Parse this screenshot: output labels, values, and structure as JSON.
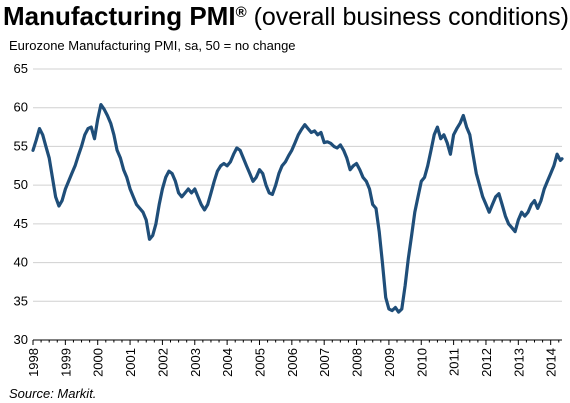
{
  "title_main": "Manufacturing PMI",
  "title_reg": "®",
  "title_rest": " (overall business conditions)",
  "subtitle": "Eurozone Manufacturing PMI, sa, 50 = no change",
  "source": "Source: Markit.",
  "colors": {
    "line": "#1f4e79",
    "grid": "#d0d0d0",
    "axis": "#000000"
  },
  "chart_data": {
    "type": "line",
    "title": "Manufacturing PMI® (overall business conditions)",
    "subtitle": "Eurozone Manufacturing PMI, sa, 50 = no change",
    "ylim": [
      30,
      65
    ],
    "yticks": [
      30,
      35,
      40,
      45,
      50,
      55,
      60,
      65
    ],
    "xlim": [
      1998.0,
      2014.35
    ],
    "xticks": [
      "1998",
      "1999",
      "2000",
      "2001",
      "2002",
      "2003",
      "2004",
      "2005",
      "2006",
      "2007",
      "2008",
      "2009",
      "2010",
      "2011",
      "2012",
      "2013",
      "2014"
    ],
    "grid": true,
    "series": [
      {
        "values": [
          [
            1998.0,
            54.5
          ],
          [
            1998.1,
            55.8
          ],
          [
            1998.2,
            57.3
          ],
          [
            1998.3,
            56.5
          ],
          [
            1998.4,
            55.0
          ],
          [
            1998.5,
            53.5
          ],
          [
            1998.6,
            51.0
          ],
          [
            1998.7,
            48.5
          ],
          [
            1998.8,
            47.3
          ],
          [
            1998.9,
            48.0
          ],
          [
            1999.0,
            49.5
          ],
          [
            1999.1,
            50.5
          ],
          [
            1999.2,
            51.5
          ],
          [
            1999.3,
            52.5
          ],
          [
            1999.4,
            53.8
          ],
          [
            1999.5,
            55.0
          ],
          [
            1999.6,
            56.5
          ],
          [
            1999.7,
            57.3
          ],
          [
            1999.8,
            57.5
          ],
          [
            1999.9,
            56.0
          ],
          [
            2000.0,
            58.5
          ],
          [
            2000.1,
            60.4
          ],
          [
            2000.2,
            59.8
          ],
          [
            2000.3,
            59.0
          ],
          [
            2000.4,
            58.0
          ],
          [
            2000.5,
            56.5
          ],
          [
            2000.6,
            54.5
          ],
          [
            2000.7,
            53.5
          ],
          [
            2000.8,
            52.0
          ],
          [
            2000.9,
            51.0
          ],
          [
            2001.0,
            49.5
          ],
          [
            2001.1,
            48.5
          ],
          [
            2001.2,
            47.5
          ],
          [
            2001.3,
            47.0
          ],
          [
            2001.4,
            46.5
          ],
          [
            2001.5,
            45.5
          ],
          [
            2001.6,
            43.0
          ],
          [
            2001.7,
            43.5
          ],
          [
            2001.8,
            45.0
          ],
          [
            2001.9,
            47.5
          ],
          [
            2002.0,
            49.5
          ],
          [
            2002.1,
            51.0
          ],
          [
            2002.2,
            51.8
          ],
          [
            2002.3,
            51.5
          ],
          [
            2002.4,
            50.5
          ],
          [
            2002.5,
            49.0
          ],
          [
            2002.6,
            48.5
          ],
          [
            2002.7,
            49.0
          ],
          [
            2002.8,
            49.5
          ],
          [
            2002.9,
            49.0
          ],
          [
            2003.0,
            49.5
          ],
          [
            2003.1,
            48.5
          ],
          [
            2003.2,
            47.5
          ],
          [
            2003.3,
            46.8
          ],
          [
            2003.4,
            47.5
          ],
          [
            2003.5,
            49.0
          ],
          [
            2003.6,
            50.5
          ],
          [
            2003.7,
            51.8
          ],
          [
            2003.8,
            52.5
          ],
          [
            2003.9,
            52.8
          ],
          [
            2004.0,
            52.5
          ],
          [
            2004.1,
            53.0
          ],
          [
            2004.2,
            54.0
          ],
          [
            2004.3,
            54.8
          ],
          [
            2004.4,
            54.5
          ],
          [
            2004.5,
            53.5
          ],
          [
            2004.6,
            52.5
          ],
          [
            2004.7,
            51.5
          ],
          [
            2004.8,
            50.5
          ],
          [
            2004.9,
            51.0
          ],
          [
            2005.0,
            52.0
          ],
          [
            2005.1,
            51.5
          ],
          [
            2005.2,
            50.0
          ],
          [
            2005.3,
            49.0
          ],
          [
            2005.4,
            48.8
          ],
          [
            2005.5,
            50.0
          ],
          [
            2005.6,
            51.5
          ],
          [
            2005.7,
            52.5
          ],
          [
            2005.8,
            53.0
          ],
          [
            2005.9,
            53.8
          ],
          [
            2006.0,
            54.5
          ],
          [
            2006.1,
            55.5
          ],
          [
            2006.2,
            56.5
          ],
          [
            2006.3,
            57.2
          ],
          [
            2006.4,
            57.8
          ],
          [
            2006.5,
            57.3
          ],
          [
            2006.6,
            56.8
          ],
          [
            2006.7,
            57.0
          ],
          [
            2006.8,
            56.5
          ],
          [
            2006.9,
            56.8
          ],
          [
            2007.0,
            55.5
          ],
          [
            2007.1,
            55.6
          ],
          [
            2007.2,
            55.4
          ],
          [
            2007.3,
            55.0
          ],
          [
            2007.4,
            54.8
          ],
          [
            2007.5,
            55.2
          ],
          [
            2007.6,
            54.5
          ],
          [
            2007.7,
            53.5
          ],
          [
            2007.8,
            52.0
          ],
          [
            2007.9,
            52.5
          ],
          [
            2008.0,
            52.8
          ],
          [
            2008.1,
            52.0
          ],
          [
            2008.2,
            51.0
          ],
          [
            2008.3,
            50.5
          ],
          [
            2008.4,
            49.5
          ],
          [
            2008.5,
            47.5
          ],
          [
            2008.6,
            47.0
          ],
          [
            2008.7,
            44.0
          ],
          [
            2008.8,
            40.0
          ],
          [
            2008.9,
            35.5
          ],
          [
            2009.0,
            34.0
          ],
          [
            2009.1,
            33.8
          ],
          [
            2009.2,
            34.2
          ],
          [
            2009.3,
            33.6
          ],
          [
            2009.4,
            34.0
          ],
          [
            2009.5,
            37.0
          ],
          [
            2009.6,
            40.5
          ],
          [
            2009.7,
            43.5
          ],
          [
            2009.8,
            46.5
          ],
          [
            2009.9,
            48.5
          ],
          [
            2010.0,
            50.5
          ],
          [
            2010.1,
            51.0
          ],
          [
            2010.2,
            52.5
          ],
          [
            2010.3,
            54.5
          ],
          [
            2010.4,
            56.5
          ],
          [
            2010.5,
            57.5
          ],
          [
            2010.6,
            56.0
          ],
          [
            2010.7,
            56.5
          ],
          [
            2010.8,
            55.5
          ],
          [
            2010.9,
            54.0
          ],
          [
            2011.0,
            56.5
          ],
          [
            2011.1,
            57.3
          ],
          [
            2011.2,
            58.0
          ],
          [
            2011.3,
            59.0
          ],
          [
            2011.4,
            57.5
          ],
          [
            2011.5,
            56.5
          ],
          [
            2011.6,
            54.0
          ],
          [
            2011.7,
            51.5
          ],
          [
            2011.8,
            50.0
          ],
          [
            2011.9,
            48.5
          ],
          [
            2012.0,
            47.5
          ],
          [
            2012.1,
            46.5
          ],
          [
            2012.2,
            47.5
          ],
          [
            2012.3,
            48.5
          ],
          [
            2012.4,
            48.9
          ],
          [
            2012.5,
            47.5
          ],
          [
            2012.6,
            46.0
          ],
          [
            2012.7,
            45.0
          ],
          [
            2012.8,
            44.5
          ],
          [
            2012.9,
            44.0
          ],
          [
            2013.0,
            45.5
          ],
          [
            2013.1,
            46.5
          ],
          [
            2013.2,
            46.0
          ],
          [
            2013.3,
            46.5
          ],
          [
            2013.4,
            47.5
          ],
          [
            2013.5,
            48.0
          ],
          [
            2013.6,
            47.0
          ],
          [
            2013.7,
            48.0
          ],
          [
            2013.8,
            49.5
          ],
          [
            2013.9,
            50.5
          ],
          [
            2014.0,
            51.5
          ],
          [
            2014.1,
            52.5
          ],
          [
            2014.2,
            54.0
          ],
          [
            2014.3,
            53.2
          ],
          [
            2014.35,
            53.4
          ]
        ]
      }
    ]
  }
}
